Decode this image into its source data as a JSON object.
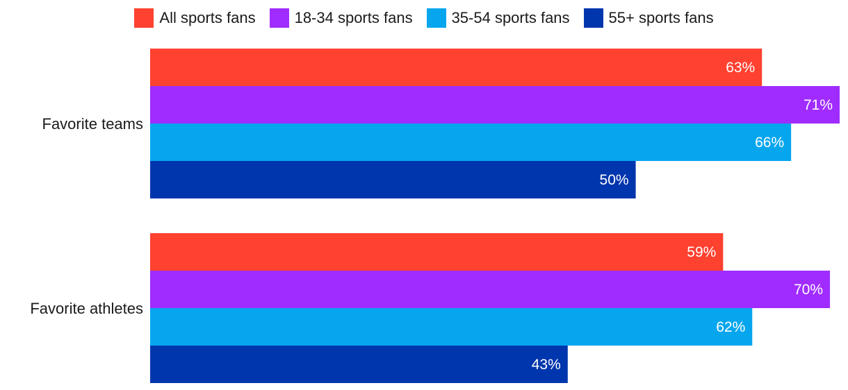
{
  "chart_data": {
    "type": "bar",
    "orientation": "horizontal",
    "title": "",
    "xlabel": "",
    "ylabel": "",
    "xlim": [
      0,
      71
    ],
    "grid": false,
    "legend_position": "top",
    "categories": [
      "Favorite teams",
      "Favorite athletes"
    ],
    "series": [
      {
        "name": "All sports fans",
        "color": "#ff4130",
        "values": [
          63,
          59
        ],
        "labels": [
          "63%",
          "59%"
        ]
      },
      {
        "name": "18-34 sports fans",
        "color": "#a02cff",
        "values": [
          71,
          70
        ],
        "labels": [
          "71%",
          "70%"
        ]
      },
      {
        "name": "35-54 sports fans",
        "color": "#06a6ee",
        "values": [
          66,
          62
        ],
        "labels": [
          "66%",
          "62%"
        ]
      },
      {
        "name": "55+ sports fans",
        "color": "#0036ad",
        "values": [
          50,
          43
        ],
        "labels": [
          "50%",
          "43%"
        ]
      }
    ]
  }
}
